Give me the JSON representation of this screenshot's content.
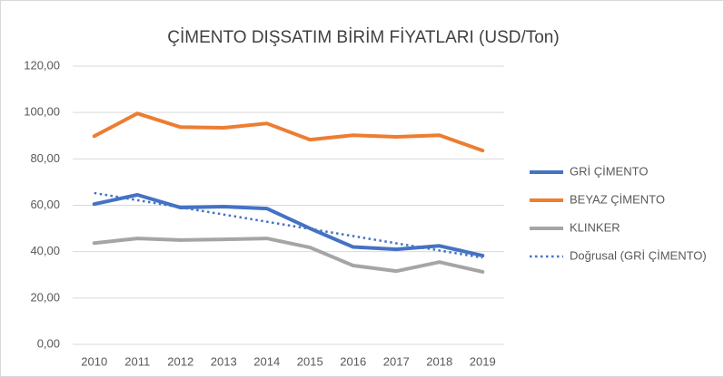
{
  "chart_data": {
    "type": "line",
    "title": "ÇİMENTO DIŞSATIM BİRİM FİYATLARI (USD/Ton)",
    "categories": [
      "2010",
      "2011",
      "2012",
      "2013",
      "2014",
      "2015",
      "2016",
      "2017",
      "2018",
      "2019"
    ],
    "series": [
      {
        "name": "GRİ ÇİMENTO",
        "color": "#4472c4",
        "style": "solid",
        "values": [
          60.5,
          64.5,
          59.0,
          59.4,
          58.6,
          50.0,
          42.0,
          41.0,
          42.5,
          38.3
        ]
      },
      {
        "name": "BEYAZ ÇİMENTO",
        "color": "#ed7d31",
        "style": "solid",
        "values": [
          89.8,
          99.6,
          93.7,
          93.4,
          95.3,
          88.3,
          90.2,
          89.5,
          90.2,
          83.6
        ]
      },
      {
        "name": "KLINKER",
        "color": "#a5a5a5",
        "style": "solid",
        "values": [
          43.7,
          45.7,
          45.0,
          45.3,
          45.7,
          41.8,
          34.0,
          31.6,
          35.5,
          31.3
        ]
      },
      {
        "name": "Doğrusal (GRİ ÇİMENTO)",
        "color": "#4472c4",
        "style": "dotted",
        "values": [
          65.3,
          62.2,
          59.1,
          56.0,
          52.9,
          49.8,
          46.7,
          43.6,
          40.5,
          37.4
        ]
      }
    ],
    "ylim": [
      0,
      120
    ],
    "yticks": [
      {
        "value": 0,
        "label": "0,00"
      },
      {
        "value": 20,
        "label": "20,00"
      },
      {
        "value": 40,
        "label": "40,00"
      },
      {
        "value": 60,
        "label": "60,00"
      },
      {
        "value": 80,
        "label": "80,00"
      },
      {
        "value": 100,
        "label": "100,00"
      },
      {
        "value": 120,
        "label": "120,00"
      }
    ],
    "grid": true,
    "legend": "right"
  }
}
